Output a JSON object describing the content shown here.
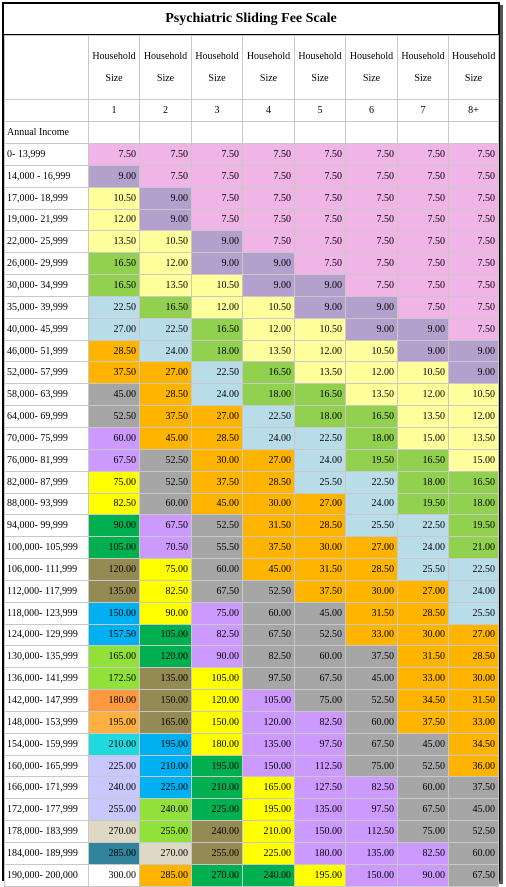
{
  "title": "Psychiatric Sliding Fee Scale",
  "header_word_1": "Household",
  "header_word_2": "Size",
  "sizes": [
    "1",
    "2",
    "3",
    "4",
    "5",
    "6",
    "7",
    "8+"
  ],
  "annual_income_label": "Annual Income",
  "rows": [
    {
      "income": "0- 13,999",
      "values": [
        "7.50",
        "7.50",
        "7.50",
        "7.50",
        "7.50",
        "7.50",
        "7.50",
        "7.50"
      ]
    },
    {
      "income": "14,000 - 16,999",
      "values": [
        "9.00",
        "7.50",
        "7.50",
        "7.50",
        "7.50",
        "7.50",
        "7.50",
        "7.50"
      ]
    },
    {
      "income": "17,000- 18,999",
      "values": [
        "10.50",
        "9.00",
        "7.50",
        "7.50",
        "7.50",
        "7.50",
        "7.50",
        "7.50"
      ]
    },
    {
      "income": "19,000- 21,999",
      "values": [
        "12.00",
        "9.00",
        "7.50",
        "7.50",
        "7.50",
        "7.50",
        "7.50",
        "7.50"
      ]
    },
    {
      "income": "22,000- 25,999",
      "values": [
        "13.50",
        "10.50",
        "9.00",
        "7.50",
        "7.50",
        "7.50",
        "7.50",
        "7.50"
      ]
    },
    {
      "income": "26,000- 29,999",
      "values": [
        "16.50",
        "12.00",
        "9.00",
        "9.00",
        "7.50",
        "7.50",
        "7.50",
        "7.50"
      ]
    },
    {
      "income": "30,000- 34,999",
      "values": [
        "16.50",
        "13.50",
        "10.50",
        "9.00",
        "9.00",
        "7.50",
        "7.50",
        "7.50"
      ]
    },
    {
      "income": "35,000- 39,999",
      "values": [
        "22.50",
        "16.50",
        "12.00",
        "10.50",
        "9.00",
        "9.00",
        "7.50",
        "7.50"
      ]
    },
    {
      "income": "40,000- 45,999",
      "values": [
        "27.00",
        "22.50",
        "16.50",
        "12.00",
        "10.50",
        "9.00",
        "9.00",
        "7.50"
      ]
    },
    {
      "income": "46,000- 51,999",
      "values": [
        "28.50",
        "24.00",
        "18.00",
        "13.50",
        "12.00",
        "10.50",
        "9.00",
        "9.00"
      ]
    },
    {
      "income": "52,000- 57,999",
      "values": [
        "37.50",
        "27.00",
        "22.50",
        "16.50",
        "13.50",
        "12.00",
        "10.50",
        "9.00"
      ]
    },
    {
      "income": "58,000- 63,999",
      "values": [
        "45.00",
        "28.50",
        "24.00",
        "18.00",
        "16.50",
        "13.50",
        "12.00",
        "10.50"
      ]
    },
    {
      "income": "64,000- 69,999",
      "values": [
        "52.50",
        "37.50",
        "27.00",
        "22.50",
        "18.00",
        "16.50",
        "13.50",
        "12.00"
      ]
    },
    {
      "income": "70,000- 75,999",
      "values": [
        "60.00",
        "45.00",
        "28.50",
        "24.00",
        "22.50",
        "18.00",
        "15.00",
        "13.50"
      ]
    },
    {
      "income": "76,000- 81,999",
      "values": [
        "67.50",
        "52.50",
        "30.00",
        "27.00",
        "24.00",
        "19.50",
        "16.50",
        "15.00"
      ]
    },
    {
      "income": "82,000- 87,999",
      "values": [
        "75.00",
        "52.50",
        "37.50",
        "28.50",
        "25.50",
        "22.50",
        "18.00",
        "16.50"
      ]
    },
    {
      "income": "88,000- 93,999",
      "values": [
        "82.50",
        "60.00",
        "45.00",
        "30.00",
        "27.00",
        "24.00",
        "19.50",
        "18.00"
      ]
    },
    {
      "income": "94,000- 99,999",
      "values": [
        "90.00",
        "67.50",
        "52.50",
        "31.50",
        "28.50",
        "25.50",
        "22.50",
        "19.50"
      ]
    },
    {
      "income": "100,000- 105,999",
      "values": [
        "105.00",
        "70.50",
        "55.50",
        "37.50",
        "30.00",
        "27.00",
        "24.00",
        "21.00"
      ]
    },
    {
      "income": "106,000- 111,999",
      "values": [
        "120.00",
        "75.00",
        "60.00",
        "45.00",
        "31.50",
        "28.50",
        "25.50",
        "22.50"
      ]
    },
    {
      "income": "112,000- 117,999",
      "values": [
        "135.00",
        "82.50",
        "67.50",
        "52.50",
        "37.50",
        "30.00",
        "27.00",
        "24.00"
      ]
    },
    {
      "income": "118,000- 123,999",
      "values": [
        "150.00",
        "90.00",
        "75.00",
        "60.00",
        "45.00",
        "31.50",
        "28.50",
        "25.50"
      ]
    },
    {
      "income": "124,000- 129,999",
      "values": [
        "157.50",
        "105.00",
        "82.50",
        "67.50",
        "52.50",
        "33.00",
        "30.00",
        "27.00"
      ]
    },
    {
      "income": "130,000- 135,999",
      "values": [
        "165.00",
        "120.00",
        "90.00",
        "82.50",
        "60.00",
        "37.50",
        "31.50",
        "28.50"
      ]
    },
    {
      "income": "136,000- 141,999",
      "values": [
        "172.50",
        "135.00",
        "105.00",
        "97.50",
        "67.50",
        "45.00",
        "33.00",
        "30.00"
      ]
    },
    {
      "income": "142,000- 147,999",
      "values": [
        "180.00",
        "150.00",
        "120.00",
        "105.00",
        "75.00",
        "52.50",
        "34.50",
        "31.50"
      ]
    },
    {
      "income": "148,000- 153,999",
      "values": [
        "195.00",
        "165.00",
        "150.00",
        "120.00",
        "82.50",
        "60.00",
        "37.50",
        "33.00"
      ]
    },
    {
      "income": "154,000- 159,999",
      "values": [
        "210.00",
        "195.00",
        "180.00",
        "135.00",
        "97.50",
        "67.50",
        "45.00",
        "34.50"
      ]
    },
    {
      "income": "160,000- 165,999",
      "values": [
        "225.00",
        "210.00",
        "195.00",
        "150.00",
        "112.50",
        "75.00",
        "52.50",
        "36.00"
      ]
    },
    {
      "income": "166,000- 171,999",
      "values": [
        "240.00",
        "225.00",
        "210.00",
        "165.00",
        "127.50",
        "82.50",
        "60.00",
        "37.50"
      ]
    },
    {
      "income": "172,000- 177,999",
      "values": [
        "255.00",
        "240.00",
        "225.00",
        "195.00",
        "135.00",
        "97.50",
        "67.50",
        "45.00"
      ]
    },
    {
      "income": "178,000- 183,999",
      "values": [
        "270.00",
        "255.00",
        "240.00",
        "210.00",
        "150.00",
        "112.50",
        "75.00",
        "52.50"
      ]
    },
    {
      "income": "184,000- 189,999",
      "values": [
        "285.00",
        "270.00",
        "255.00",
        "225.00",
        "180.00",
        "135.00",
        "82.50",
        "60.00"
      ]
    },
    {
      "income": "190,000- 200,000",
      "values": [
        "300.00",
        "285.00",
        "270.00",
        "240.00",
        "195.00",
        "150.00",
        "90.00",
        "67.50"
      ]
    }
  ],
  "value_colors": {
    "7.50": "#f0b4e6",
    "9.00": "#b4a0cc",
    "10.50": "#ffff9c",
    "12.00": "#ffff9c",
    "13.50": "#ffff9c",
    "15.00": "#ffff9c",
    "16.50": "#92d050",
    "18.00": "#92d050",
    "19.50": "#92d050",
    "21.00": "#92d050",
    "22.50": "#b8dde8",
    "24.00": "#b8dde8",
    "25.50": "#b8dde8",
    "27.00": "#ffb400",
    "28.50": "#ffb400",
    "30.00": "#ffb400",
    "31.50": "#ffb400",
    "33.00": "#ffb400",
    "34.50": "#ffb400",
    "36.00": "#ffb400",
    "37.50": "#ffb400",
    "45.00": "#a6a6a6",
    "52.50": "#a6a6a6",
    "55.50": "#a6a6a6",
    "60.00": "#a6a6a6",
    "67.50": "#cc99ff",
    "70.50": "#cc99ff",
    "75.00": "#ffff00",
    "82.50": "#ffff00",
    "90.00": "#00b050",
    "97.50": "#cc99ff",
    "105.00": "#00b050",
    "112.50": "#cc99ff",
    "120.00": "#948a54",
    "127.50": "#cc99ff",
    "135.00": "#948a54",
    "150.00": "#00b0f0",
    "157.50": "#00b0f0",
    "165.00": "#92e03a",
    "172.50": "#92e03a",
    "180.00": "#ff9a40",
    "195.00": "#ffb040",
    "210.00": "#20d8e0",
    "225.00": "#00b0f0",
    "240.00": "#c8c8ff",
    "255.00": "#c8c8ff",
    "270.00": "#ddd9c4",
    "285.00": "#31849b",
    "300.00": "#ffffff"
  },
  "overrides": {
    "3-0": "#ffff9c",
    "5-0": "#92d050",
    "6-0": "#92d050",
    "7-0": "#b8dde8",
    "8-0": "#b8dde8",
    "9-0": "#ffb400",
    "10-0": "#ffb400",
    "11-0": "#a6a6a6",
    "12-0": "#a6a6a6",
    "13-0": "#cc99ff",
    "14-0": "#cc99ff",
    "15-0": "#ffff00",
    "16-0": "#ffff00",
    "17-0": "#00b050",
    "18-0": "#00b050",
    "19-0": "#948a54",
    "20-0": "#948a54",
    "21-0": "#00b0f0",
    "22-0": "#00b0f0",
    "23-0": "#92e03a",
    "24-0": "#92e03a",
    "25-0": "#ff9a40",
    "26-0": "#ffb040",
    "27-0": "#20d8e0",
    "28-0": "#c8c8ff",
    "29-0": "#c8c8ff",
    "30-0": "#c8c8ff",
    "31-0": "#ddd9c4",
    "32-0": "#31849b",
    "33-0": "#ffffff",
    "13-1": "#ffb400",
    "14-1": "#a6a6a6",
    "15-1": "#a6a6a6",
    "16-1": "#a6a6a6",
    "17-1": "#cc99ff",
    "18-1": "#cc99ff",
    "19-1": "#ffff00",
    "20-1": "#ffff00",
    "21-1": "#ffff00",
    "22-1": "#00b050",
    "23-1": "#00b050",
    "24-1": "#948a54",
    "25-1": "#948a54",
    "26-1": "#948a54",
    "27-1": "#00b0f0",
    "28-1": "#00b0f0",
    "29-1": "#00b0f0",
    "30-1": "#92e03a",
    "31-1": "#92e03a",
    "32-1": "#ddd9c4",
    "33-1": "#ffb400",
    "14-2": "#ffb400",
    "15-2": "#ffb400",
    "16-2": "#ffb400",
    "17-2": "#a6a6a6",
    "18-2": "#a6a6a6",
    "19-2": "#a6a6a6",
    "20-2": "#a6a6a6",
    "21-2": "#cc99ff",
    "22-2": "#cc99ff",
    "23-2": "#cc99ff",
    "24-2": "#ffff00",
    "25-2": "#ffff00",
    "26-2": "#ffff00",
    "27-2": "#ffff00",
    "28-2": "#00b050",
    "29-2": "#00b050",
    "30-2": "#00b050",
    "31-2": "#948a54",
    "32-2": "#948a54",
    "33-2": "#00b050",
    "15-3": "#ffb400",
    "19-3": "#ffb400",
    "20-3": "#a6a6a6",
    "21-3": "#a6a6a6",
    "22-3": "#a6a6a6",
    "23-3": "#a6a6a6",
    "24-3": "#a6a6a6",
    "25-3": "#cc99ff",
    "26-3": "#cc99ff",
    "27-3": "#cc99ff",
    "28-3": "#cc99ff",
    "29-3": "#ffff00",
    "30-3": "#ffff00",
    "31-3": "#ffff00",
    "32-3": "#ffff00",
    "33-3": "#00b050",
    "20-4": "#ffb400",
    "21-4": "#a6a6a6",
    "22-4": "#a6a6a6",
    "23-4": "#a6a6a6",
    "24-4": "#a6a6a6",
    "25-4": "#a6a6a6",
    "26-4": "#cc99ff",
    "27-4": "#cc99ff",
    "28-4": "#cc99ff",
    "29-4": "#cc99ff",
    "30-4": "#cc99ff",
    "31-4": "#cc99ff",
    "32-4": "#cc99ff",
    "33-4": "#ffff00",
    "23-5": "#a6a6a6",
    "24-5": "#a6a6a6",
    "25-5": "#a6a6a6",
    "26-5": "#a6a6a6",
    "27-5": "#a6a6a6",
    "28-5": "#a6a6a6",
    "29-5": "#cc99ff",
    "30-5": "#cc99ff",
    "31-5": "#cc99ff",
    "32-5": "#cc99ff",
    "33-5": "#cc99ff",
    "26-6": "#ffb400",
    "27-6": "#a6a6a6",
    "28-6": "#a6a6a6",
    "29-6": "#a6a6a6",
    "30-6": "#a6a6a6",
    "31-6": "#a6a6a6",
    "32-6": "#cc99ff",
    "33-6": "#cc99ff",
    "27-7": "#ffb400",
    "28-7": "#ffb400",
    "29-7": "#a6a6a6",
    "30-7": "#a6a6a6",
    "31-7": "#a6a6a6",
    "32-7": "#a6a6a6",
    "33-7": "#a6a6a6",
    "20-1b": "#ffff00"
  }
}
